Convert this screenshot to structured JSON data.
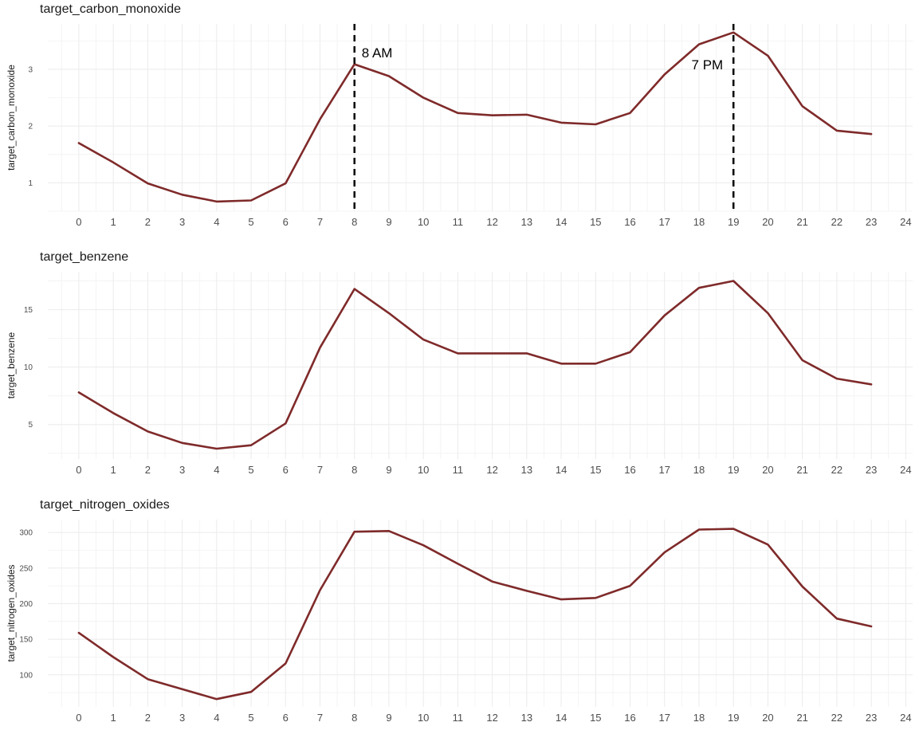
{
  "colors": {
    "line": "#7f2a2a",
    "grid_major": "#ebebeb",
    "grid_minor": "#f4f4f4",
    "vline": "#000000"
  },
  "chart_data": [
    {
      "type": "line",
      "title": "target_carbon_monoxide",
      "xlabel": "",
      "ylabel": "target_carbon_monoxide",
      "x_ticks": [
        0,
        1,
        2,
        3,
        4,
        5,
        6,
        7,
        8,
        9,
        10,
        11,
        12,
        13,
        14,
        15,
        16,
        17,
        18,
        19,
        20,
        21,
        22,
        23,
        24
      ],
      "y_ticks": [
        1,
        2,
        3
      ],
      "xlim": [
        -0.9,
        24.2
      ],
      "ylim": [
        0.5,
        3.8
      ],
      "grid": true,
      "series": [
        {
          "x": [
            0,
            1,
            2,
            3,
            4,
            5,
            6,
            7,
            8,
            9,
            10,
            11,
            12,
            13,
            14,
            15,
            16,
            17,
            18,
            19,
            20,
            21,
            22,
            23
          ],
          "y": [
            1.7,
            1.36,
            0.99,
            0.79,
            0.67,
            0.69,
            0.99,
            2.12,
            3.09,
            2.88,
            2.5,
            2.23,
            2.19,
            2.2,
            2.06,
            2.03,
            2.23,
            2.91,
            3.44,
            3.65,
            3.24,
            2.35,
            1.92,
            1.86
          ]
        }
      ],
      "vlines": [
        {
          "x": 8,
          "label": "8 AM",
          "side": "right"
        },
        {
          "x": 19,
          "label": "7 PM",
          "side": "left"
        }
      ]
    },
    {
      "type": "line",
      "title": "target_benzene",
      "xlabel": "",
      "ylabel": "target_benzene",
      "x_ticks": [
        0,
        1,
        2,
        3,
        4,
        5,
        6,
        7,
        8,
        9,
        10,
        11,
        12,
        13,
        14,
        15,
        16,
        17,
        18,
        19,
        20,
        21,
        22,
        23,
        24
      ],
      "y_ticks": [
        5,
        10,
        15
      ],
      "xlim": [
        -0.9,
        24.2
      ],
      "ylim": [
        2.0,
        18.3
      ],
      "grid": true,
      "series": [
        {
          "x": [
            0,
            1,
            2,
            3,
            4,
            5,
            6,
            7,
            8,
            9,
            10,
            11,
            12,
            13,
            14,
            15,
            16,
            17,
            18,
            19,
            20,
            21,
            22,
            23
          ],
          "y": [
            7.8,
            6.0,
            4.4,
            3.4,
            2.9,
            3.2,
            5.1,
            11.7,
            16.8,
            14.7,
            12.4,
            11.2,
            11.2,
            11.2,
            10.3,
            10.3,
            11.3,
            14.5,
            16.9,
            17.5,
            14.7,
            10.6,
            9.0,
            8.5
          ]
        }
      ],
      "vlines": []
    },
    {
      "type": "line",
      "title": "target_nitrogen_oxides",
      "xlabel": "",
      "ylabel": "target_nitrogen_oxides",
      "x_ticks": [
        0,
        1,
        2,
        3,
        4,
        5,
        6,
        7,
        8,
        9,
        10,
        11,
        12,
        13,
        14,
        15,
        16,
        17,
        18,
        19,
        20,
        21,
        22,
        23,
        24
      ],
      "y_ticks": [
        100,
        150,
        200,
        250,
        300
      ],
      "xlim": [
        -0.9,
        24.2
      ],
      "ylim": [
        55,
        318
      ],
      "grid": true,
      "series": [
        {
          "x": [
            0,
            1,
            2,
            3,
            4,
            5,
            6,
            7,
            8,
            9,
            10,
            11,
            12,
            13,
            14,
            15,
            16,
            17,
            18,
            19,
            20,
            21,
            22,
            23
          ],
          "y": [
            159,
            125,
            94,
            80,
            66,
            76,
            116,
            219,
            301,
            302,
            282,
            256,
            231,
            218,
            206,
            208,
            225,
            272,
            304,
            305,
            283,
            224,
            179,
            168
          ]
        }
      ],
      "vlines": []
    }
  ]
}
